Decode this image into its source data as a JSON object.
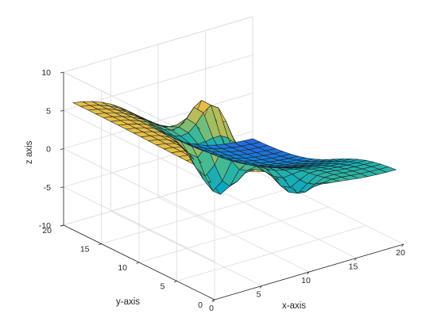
{
  "chart_data": {
    "type": "surface",
    "title": "",
    "xlabel": "x-axis",
    "ylabel": "y-axis",
    "zlabel": "z axis",
    "xlim": [
      0,
      20
    ],
    "ylim": [
      0,
      20
    ],
    "zlim": [
      -10,
      10
    ],
    "xticks": [
      0,
      5,
      10,
      15,
      20
    ],
    "yticks": [
      0,
      5,
      10,
      15,
      20
    ],
    "zticks": [
      -10,
      -5,
      0,
      5,
      10
    ],
    "grid": true,
    "colormap": "parula",
    "surface_x_range": [
      1,
      20
    ],
    "surface_y_range": [
      1,
      20
    ],
    "surface_z_range": [
      -9.7,
      9.6
    ],
    "grid_points_per_side": 20
  }
}
